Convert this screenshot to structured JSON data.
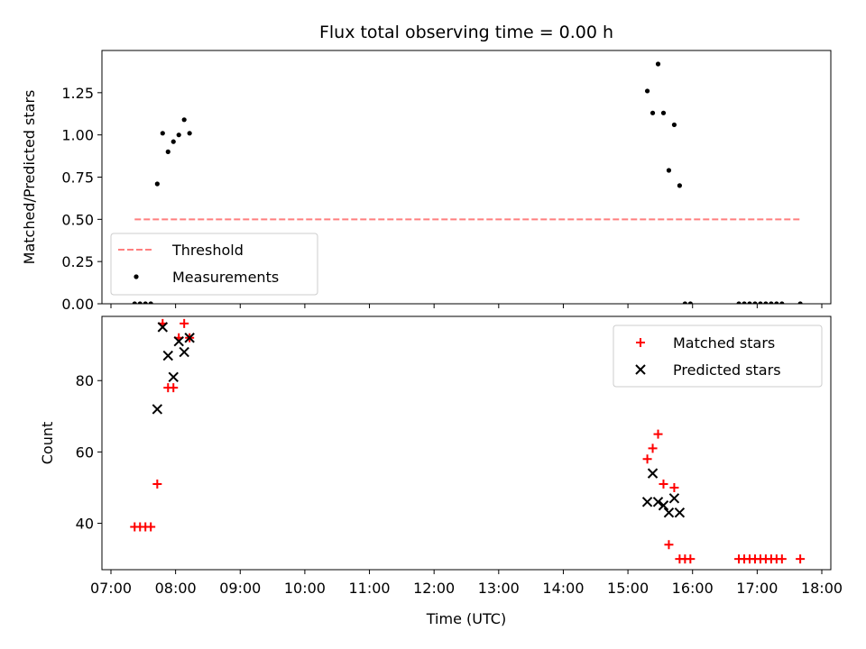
{
  "chart_data": [
    {
      "type": "scatter",
      "title": "Flux total observing time = 0.00 h",
      "ylabel": "Matched/Predicted stars",
      "xlabel": "",
      "xlim": [
        "07:00",
        "18:00"
      ],
      "ylim": [
        0,
        1.5
      ],
      "y_ticks": [
        0.0,
        0.25,
        0.5,
        0.75,
        1.0,
        1.25
      ],
      "y_tick_labels": [
        "0.00",
        "0.25",
        "0.50",
        "0.75",
        "1.00",
        "1.25"
      ],
      "legend_position": "lower-left",
      "threshold": {
        "name": "Threshold",
        "value": 0.5,
        "x_range": [
          "07:22",
          "17:40"
        ],
        "color": "#ff7f7f",
        "style": "dashed"
      },
      "series": [
        {
          "name": "Measurements",
          "color": "#000000",
          "marker": "dot",
          "points": [
            [
              "07:22",
              0.0
            ],
            [
              "07:27",
              0.0
            ],
            [
              "07:32",
              0.0
            ],
            [
              "07:37",
              0.0
            ],
            [
              "07:43",
              0.71
            ],
            [
              "07:48",
              1.01
            ],
            [
              "07:53",
              0.9
            ],
            [
              "07:58",
              0.96
            ],
            [
              "08:03",
              1.0
            ],
            [
              "08:08",
              1.09
            ],
            [
              "08:13",
              1.01
            ],
            [
              "15:18",
              1.26
            ],
            [
              "15:23",
              1.13
            ],
            [
              "15:28",
              1.42
            ],
            [
              "15:33",
              1.13
            ],
            [
              "15:38",
              0.79
            ],
            [
              "15:43",
              1.06
            ],
            [
              "15:48",
              0.7
            ],
            [
              "15:53",
              0.0
            ],
            [
              "15:58",
              0.0
            ],
            [
              "16:43",
              0.0
            ],
            [
              "16:48",
              0.0
            ],
            [
              "16:53",
              0.0
            ],
            [
              "16:58",
              0.0
            ],
            [
              "17:03",
              0.0
            ],
            [
              "17:08",
              0.0
            ],
            [
              "17:13",
              0.0
            ],
            [
              "17:18",
              0.0
            ],
            [
              "17:23",
              0.0
            ],
            [
              "17:40",
              0.0
            ]
          ]
        }
      ]
    },
    {
      "type": "scatter",
      "title": "",
      "ylabel": "Count",
      "xlabel": "Time (UTC)",
      "xlim": [
        "07:00",
        "18:00"
      ],
      "ylim": [
        27,
        98
      ],
      "y_ticks": [
        40,
        60,
        80
      ],
      "y_tick_labels": [
        "40",
        "60",
        "80"
      ],
      "x_tick_labels": [
        "07:00",
        "08:00",
        "09:00",
        "10:00",
        "11:00",
        "12:00",
        "13:00",
        "14:00",
        "15:00",
        "16:00",
        "17:00",
        "18:00"
      ],
      "legend_position": "upper-right",
      "series": [
        {
          "name": "Matched stars",
          "color": "#ff0000",
          "marker": "plus",
          "points": [
            [
              "07:22",
              39
            ],
            [
              "07:27",
              39
            ],
            [
              "07:32",
              39
            ],
            [
              "07:37",
              39
            ],
            [
              "07:43",
              51
            ],
            [
              "07:48",
              96
            ],
            [
              "07:53",
              78
            ],
            [
              "07:58",
              78
            ],
            [
              "08:03",
              92
            ],
            [
              "08:08",
              96
            ],
            [
              "08:13",
              92
            ],
            [
              "15:18",
              58
            ],
            [
              "15:23",
              61
            ],
            [
              "15:28",
              65
            ],
            [
              "15:33",
              51
            ],
            [
              "15:38",
              34
            ],
            [
              "15:43",
              50
            ],
            [
              "15:48",
              30
            ],
            [
              "15:53",
              30
            ],
            [
              "15:58",
              30
            ],
            [
              "16:43",
              30
            ],
            [
              "16:48",
              30
            ],
            [
              "16:53",
              30
            ],
            [
              "16:58",
              30
            ],
            [
              "17:03",
              30
            ],
            [
              "17:08",
              30
            ],
            [
              "17:13",
              30
            ],
            [
              "17:18",
              30
            ],
            [
              "17:23",
              30
            ],
            [
              "17:40",
              30
            ]
          ]
        },
        {
          "name": "Predicted stars",
          "color": "#000000",
          "marker": "x",
          "points": [
            [
              "07:43",
              72
            ],
            [
              "07:48",
              95
            ],
            [
              "07:53",
              87
            ],
            [
              "07:58",
              81
            ],
            [
              "08:03",
              91
            ],
            [
              "08:08",
              88
            ],
            [
              "08:13",
              92
            ],
            [
              "15:18",
              46
            ],
            [
              "15:23",
              54
            ],
            [
              "15:28",
              46
            ],
            [
              "15:33",
              45
            ],
            [
              "15:38",
              43
            ],
            [
              "15:43",
              47
            ],
            [
              "15:48",
              43
            ]
          ]
        }
      ]
    }
  ]
}
